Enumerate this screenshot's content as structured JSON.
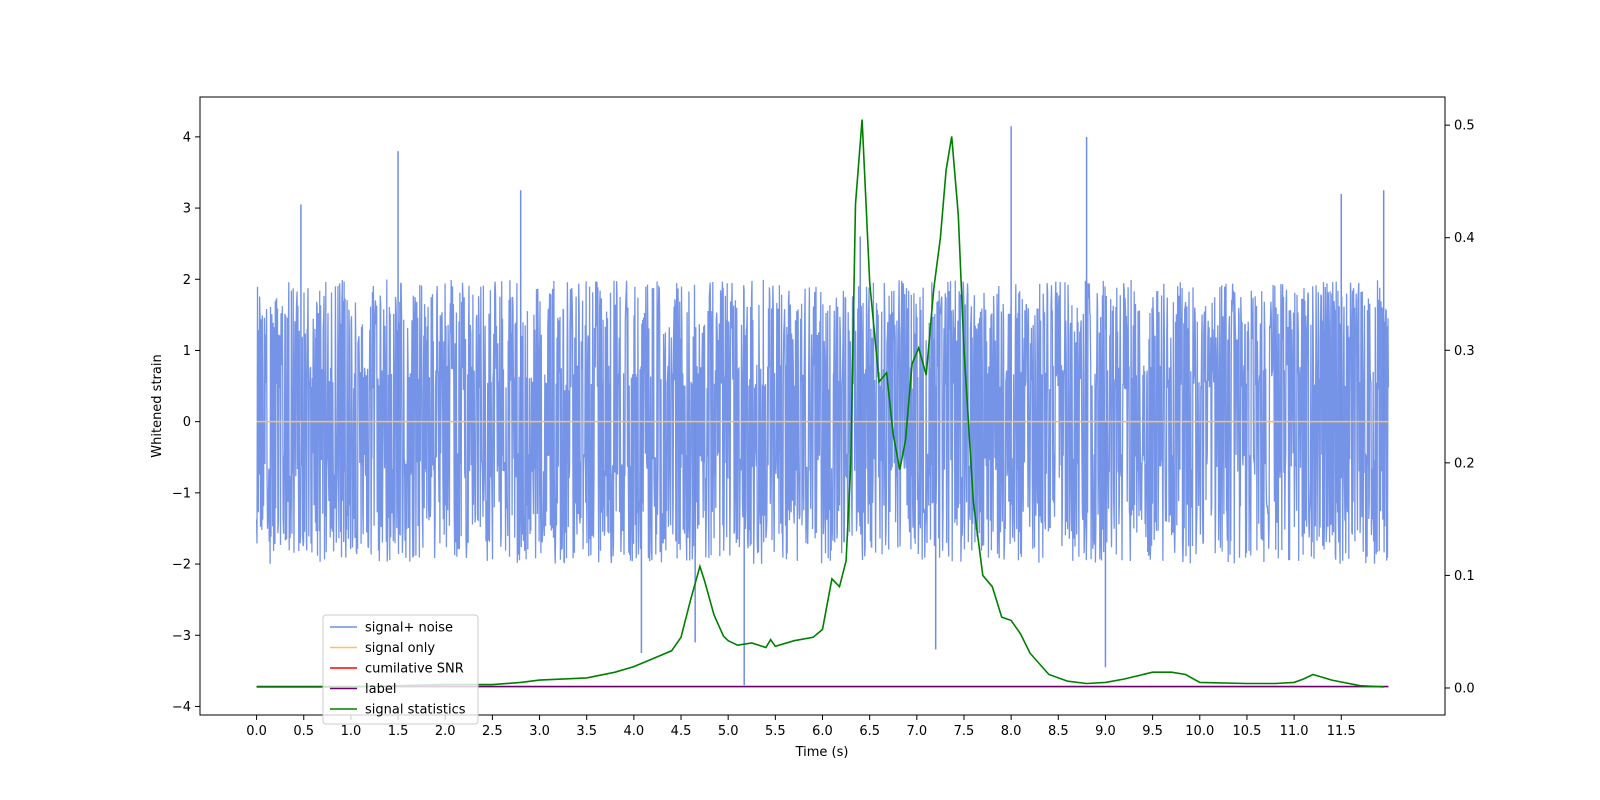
{
  "chart_data": {
    "type": "line",
    "title": "",
    "xlabel": "Time (s)",
    "ylabel": "Whitened strain",
    "y2label": "",
    "xlim": [
      -0.6,
      12.6
    ],
    "ylim": [
      -4.12,
      4.56
    ],
    "y2lim": [
      -0.024,
      0.525
    ],
    "x_ticks": [
      0.0,
      0.5,
      1.0,
      1.5,
      2.0,
      2.5,
      3.0,
      3.5,
      4.0,
      4.5,
      5.0,
      5.5,
      6.0,
      6.5,
      7.0,
      7.5,
      8.0,
      8.5,
      9.0,
      9.5,
      10.0,
      10.5,
      11.0,
      11.5
    ],
    "x_tick_labels": [
      "0.0",
      "0.5",
      "1.0",
      "1.5",
      "2.0",
      "2.5",
      "3.0",
      "3.5",
      "4.0",
      "4.5",
      "5.0",
      "5.5",
      "6.0",
      "6.5",
      "7.0",
      "7.5",
      "8.0",
      "8.5",
      "9.0",
      "9.5",
      "10.0",
      "10.5",
      "11.0",
      "11.5"
    ],
    "y_ticks": [
      4,
      3,
      2,
      1,
      0,
      -1,
      -2,
      -3,
      -4
    ],
    "y_tick_labels": [
      "4",
      "3",
      "2",
      "1",
      "0",
      "−1",
      "−2",
      "−3",
      "−4"
    ],
    "y2_ticks": [
      0.5,
      0.4,
      0.3,
      0.2,
      0.1,
      0.0
    ],
    "y2_tick_labels": [
      "0.5",
      "0.4",
      "0.3",
      "0.2",
      "0.1",
      "0.0"
    ],
    "legend_position": "lower-left",
    "grid": false,
    "series": [
      {
        "name": "signal+ noise",
        "color": "#6f8ee6",
        "axis": "left",
        "description": "noise band ~ -2 to 2 with spikes",
        "x": [
          0.0,
          12.0
        ],
        "envelope_upper": 2.0,
        "envelope_lower": -2.0,
        "peaks": [
          [
            1.5,
            3.8
          ],
          [
            0.47,
            3.05
          ],
          [
            2.8,
            3.25
          ],
          [
            8.0,
            4.15
          ],
          [
            8.8,
            4.0
          ],
          [
            11.5,
            3.2
          ],
          [
            11.95,
            3.25
          ],
          [
            6.4,
            2.6
          ],
          [
            5.17,
            -3.7
          ],
          [
            4.08,
            -3.25
          ],
          [
            7.2,
            -3.2
          ],
          [
            9.0,
            -3.45
          ],
          [
            4.65,
            -3.1
          ]
        ]
      },
      {
        "name": "signal only",
        "color": "#ffbf5a",
        "axis": "left",
        "x": [
          0.0,
          12.0
        ],
        "y": [
          0.0,
          0.0
        ]
      },
      {
        "name": "cumilative SNR",
        "color": "#ff0000",
        "axis": "left",
        "x": [],
        "y": []
      },
      {
        "name": "label",
        "color": "#6a006a",
        "axis": "left",
        "x": [
          0.0,
          12.0
        ],
        "y": [
          -3.72,
          -3.72
        ]
      },
      {
        "name": "signal statistics",
        "color": "#008000",
        "axis": "right",
        "x": [
          0.0,
          0.5,
          1.0,
          1.5,
          2.0,
          2.5,
          2.8,
          3.0,
          3.5,
          3.8,
          4.0,
          4.2,
          4.4,
          4.5,
          4.6,
          4.7,
          4.75,
          4.85,
          4.95,
          5.0,
          5.1,
          5.25,
          5.4,
          5.45,
          5.5,
          5.7,
          5.9,
          6.0,
          6.1,
          6.18,
          6.25,
          6.3,
          6.35,
          6.42,
          6.5,
          6.6,
          6.68,
          6.75,
          6.82,
          6.88,
          6.95,
          7.02,
          7.1,
          7.18,
          7.25,
          7.31,
          7.37,
          7.44,
          7.5,
          7.6,
          7.7,
          7.8,
          7.9,
          8.0,
          8.1,
          8.2,
          8.4,
          8.6,
          8.8,
          9.0,
          9.2,
          9.5,
          9.7,
          9.85,
          10.0,
          10.5,
          10.8,
          11.0,
          11.1,
          11.2,
          11.4,
          11.7,
          11.95
        ],
        "y": [
          0.001,
          0.001,
          0.001,
          0.002,
          0.003,
          0.003,
          0.005,
          0.007,
          0.009,
          0.014,
          0.019,
          0.026,
          0.033,
          0.045,
          0.078,
          0.108,
          0.095,
          0.065,
          0.046,
          0.042,
          0.038,
          0.04,
          0.036,
          0.043,
          0.037,
          0.042,
          0.045,
          0.052,
          0.097,
          0.09,
          0.113,
          0.2,
          0.43,
          0.505,
          0.36,
          0.272,
          0.28,
          0.225,
          0.194,
          0.22,
          0.288,
          0.302,
          0.278,
          0.355,
          0.4,
          0.46,
          0.49,
          0.42,
          0.3,
          0.165,
          0.1,
          0.09,
          0.063,
          0.06,
          0.048,
          0.031,
          0.012,
          0.006,
          0.004,
          0.005,
          0.008,
          0.014,
          0.014,
          0.012,
          0.005,
          0.004,
          0.004,
          0.005,
          0.008,
          0.012,
          0.007,
          0.002,
          0.001
        ]
      }
    ]
  }
}
